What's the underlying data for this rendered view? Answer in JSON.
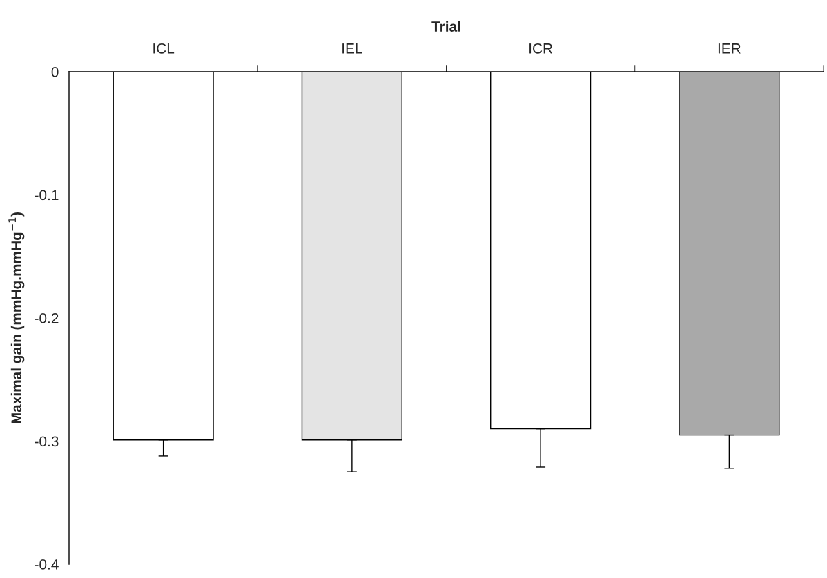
{
  "chart_data": {
    "type": "bar",
    "xlabel": "Trial",
    "ylabel": "Maximal gain (mmHg.mmHg$^{−1}$)",
    "categories": [
      "ICL",
      "IEL",
      "ICR",
      "IER"
    ],
    "values": [
      -0.299,
      -0.299,
      -0.29,
      -0.295
    ],
    "errors": [
      [
        -0.312,
        -0.299
      ],
      [
        -0.325,
        -0.299
      ],
      [
        -0.321,
        -0.29
      ],
      [
        -0.322,
        -0.295
      ]
    ],
    "colors": [
      "#ffffff",
      "#e4e4e4",
      "#ffffff",
      "#a9a9a9"
    ],
    "ylim": [
      -0.4,
      0
    ],
    "yticks": [
      {
        "value": 0,
        "label": "0"
      },
      -0.1,
      -0.2,
      -0.3,
      -0.4
    ],
    "grid": false,
    "legend": false
  }
}
